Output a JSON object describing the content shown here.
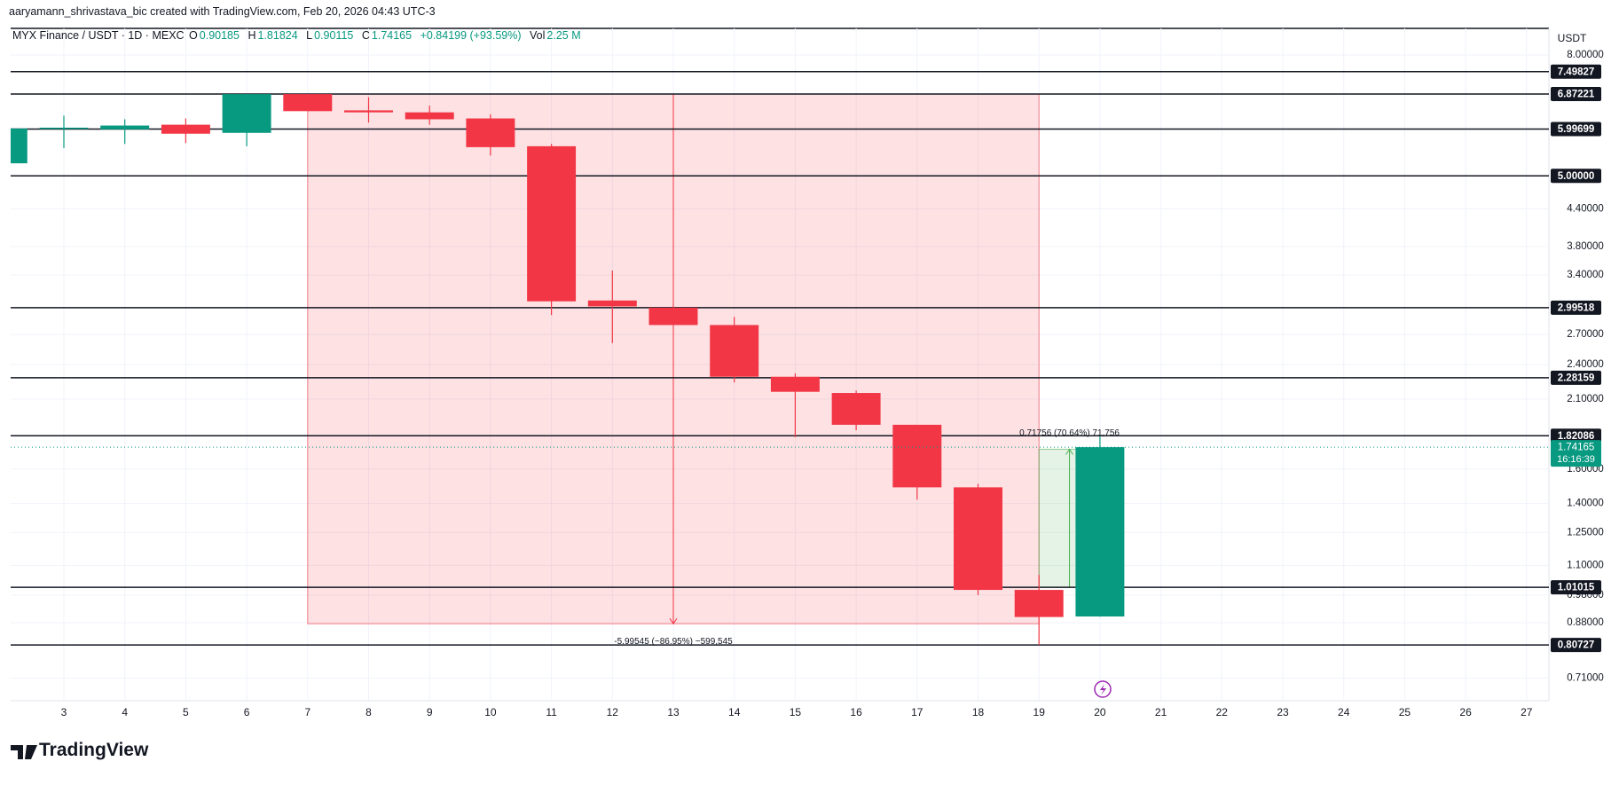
{
  "attribution": "aaryamann_shrivastava_bic created with TradingView.com, Feb 20, 2026 04:43 UTC-3",
  "logo": "TradingView",
  "chart_data": {
    "type": "candlestick",
    "title": "MYX Finance / USDT · 1D · MEXC",
    "ohlc_labels": [
      "O",
      "H",
      "L",
      "C"
    ],
    "change": "+0.84199 (+93.59%)",
    "volume_label": "Vol",
    "volume": {
      "value": 2250000,
      "label": "2.25 M"
    },
    "currency": "USDT",
    "categories": [
      null,
      "3",
      "4",
      "5",
      "6",
      "7",
      "8",
      "9",
      "10",
      "11",
      "12",
      "13",
      "14",
      "15",
      "16",
      "17",
      "18",
      "19",
      "20",
      "21",
      "22",
      "23",
      "24",
      "25",
      "26",
      "27"
    ],
    "open": [
      5.25,
      6.01,
      5.99,
      6.1,
      5.91,
      6.87,
      6.45,
      6.4,
      6.25,
      5.61,
      3.08,
      2.99518,
      2.8,
      2.29,
      2.15,
      1.9,
      1.49,
      1.0,
      0.90185,
      null,
      null,
      null,
      null,
      null,
      null,
      null
    ],
    "high": [
      6.01,
      6.32,
      6.23,
      6.25,
      6.87221,
      6.87,
      6.79,
      6.57,
      6.35,
      5.66,
      3.46,
      3.02,
      2.89,
      2.32,
      2.17,
      1.9,
      1.51,
      1.06,
      1.81824,
      null,
      null,
      null,
      null,
      null,
      null,
      null
    ],
    "low": [
      5.25,
      5.57,
      5.66,
      5.68,
      5.61,
      6.43,
      6.15,
      6.1,
      5.41,
      2.91,
      2.61,
      2.8,
      2.24,
      1.81,
      1.86,
      1.42,
      0.98,
      0.80727,
      0.90115,
      null,
      null,
      null,
      null,
      null,
      null,
      null
    ],
    "close": [
      6.01,
      6.03,
      6.08,
      5.89,
      6.87,
      6.43,
      6.4,
      6.23,
      5.59,
      3.07,
      3.01,
      2.8,
      2.29,
      2.16,
      1.9,
      1.49,
      1.0,
      0.9,
      1.74165,
      null,
      null,
      null,
      null,
      null,
      null,
      null
    ],
    "up_color": "#089981",
    "down_color": "#f23645",
    "ylim": [
      0.65,
      8.87
    ],
    "log_scale": true,
    "grid": true,
    "yticks": [
      {
        "value": 8,
        "label": "8.00000"
      },
      {
        "value": 4.4,
        "label": "4.40000"
      },
      {
        "value": 3.8,
        "label": "3.80000"
      },
      {
        "value": 3.4,
        "label": "3.40000"
      },
      {
        "value": 2.7,
        "label": "2.70000"
      },
      {
        "value": 2.4,
        "label": "2.40000"
      },
      {
        "value": 2.1,
        "label": "2.10000"
      },
      {
        "value": 1.6,
        "label": "1.60000"
      },
      {
        "value": 1.4,
        "label": "1.40000"
      },
      {
        "value": 1.25,
        "label": "1.25000"
      },
      {
        "value": 1.1,
        "label": "1.10000"
      },
      {
        "value": 0.98,
        "label": "0.98000"
      },
      {
        "value": 0.88,
        "label": "0.88000"
      },
      {
        "value": 0.71,
        "label": "0.71000"
      }
    ],
    "levels": [
      7.49827,
      6.87221,
      5.99699,
      {
        "value": 5,
        "label": "5.00000"
      },
      2.99518,
      2.28159,
      1.82086,
      1.01015,
      0.80727
    ],
    "last_price_countdown": "16:16:39",
    "measures": [
      {
        "start": "7",
        "end": "19",
        "from": 6.87221,
        "change": -5.99545,
        "label": "-5.99545 (−86.95%) −599,545",
        "color": "#f23645"
      },
      {
        "start": "19",
        "end": "20",
        "from": 1.01015,
        "change": 0.71756,
        "label": "0.71756 (70.64%) 71,756",
        "color": "#4caf50"
      }
    ]
  }
}
